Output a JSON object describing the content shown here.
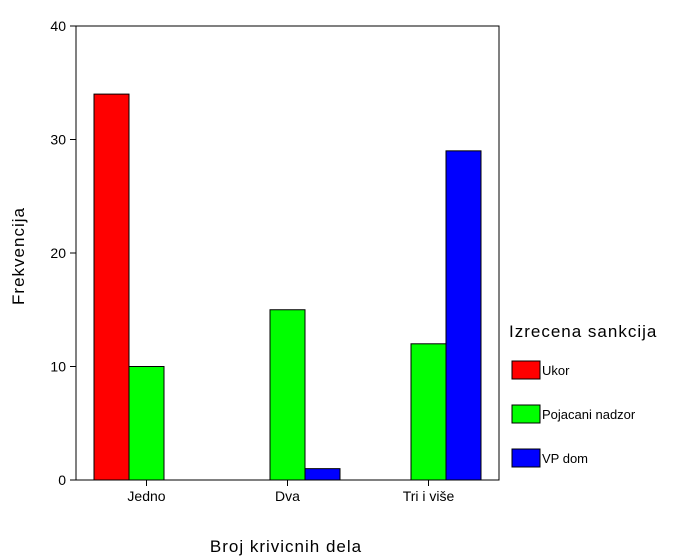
{
  "chart_data": {
    "type": "bar",
    "title": "",
    "xlabel": "Broj krivicnih dela",
    "ylabel": "Frekvencija",
    "categories": [
      "Jedno",
      "Dva",
      "Tri i više"
    ],
    "series": [
      {
        "name": "Ukor",
        "values": [
          34,
          0,
          0
        ],
        "color": "#ff0000"
      },
      {
        "name": "Pojacani nadzor",
        "values": [
          10,
          15,
          12
        ],
        "color": "#00ff00"
      },
      {
        "name": "VP dom",
        "values": [
          0,
          1,
          29
        ],
        "color": "#0000ff"
      }
    ],
    "ylim": [
      0,
      40
    ],
    "yticks": [
      "0",
      "10",
      "20",
      "30",
      "40"
    ],
    "legend_title": "Izrecena sankcija",
    "legend_position": "right",
    "grid": false
  }
}
